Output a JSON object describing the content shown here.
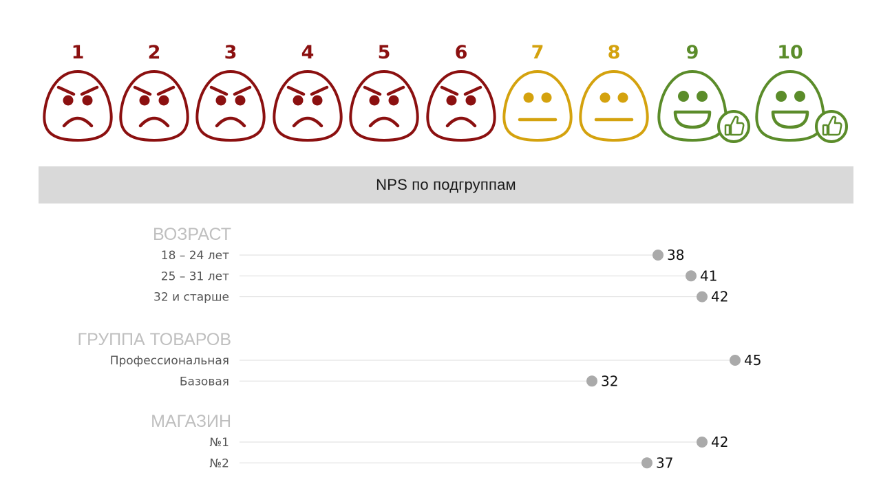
{
  "colors": {
    "detractor": "#8b1010",
    "passive": "#d4a20e",
    "promoter": "#5b8c2a",
    "header_bg": "#d9d9d9",
    "dot": "#aaaaaa",
    "line": "#dddddd",
    "group_text": "#bfbfbf"
  },
  "scale": [
    {
      "label": "1",
      "type": "detractor",
      "icon": "angry-face-icon"
    },
    {
      "label": "2",
      "type": "detractor",
      "icon": "angry-face-icon"
    },
    {
      "label": "3",
      "type": "detractor",
      "icon": "angry-face-icon"
    },
    {
      "label": "4",
      "type": "detractor",
      "icon": "angry-face-icon"
    },
    {
      "label": "5",
      "type": "detractor",
      "icon": "angry-face-icon"
    },
    {
      "label": "6",
      "type": "detractor",
      "icon": "angry-face-icon"
    },
    {
      "label": "7",
      "type": "passive",
      "icon": "neutral-face-icon"
    },
    {
      "label": "8",
      "type": "passive",
      "icon": "neutral-face-icon"
    },
    {
      "label": "9",
      "type": "promoter",
      "icon": "happy-face-thumbs-up-icon"
    },
    {
      "label": "10",
      "type": "promoter",
      "icon": "happy-face-thumbs-up-icon"
    }
  ],
  "header": {
    "title": "NPS по подгруппам"
  },
  "chart_data": {
    "type": "scatter",
    "xlim": [
      0,
      50
    ],
    "grid": false,
    "groups": [
      {
        "name": "ВОЗРАСТ",
        "rows": [
          {
            "label": "18 – 24 лет",
            "value": 38
          },
          {
            "label": "25 – 31 лет",
            "value": 41
          },
          {
            "label": "32 и старше",
            "value": 42
          }
        ]
      },
      {
        "name": "ГРУППА ТОВАРОВ",
        "rows": [
          {
            "label": "Профессиональная",
            "value": 45
          },
          {
            "label": "Базовая",
            "value": 32
          }
        ]
      },
      {
        "name": "МАГАЗИН",
        "rows": [
          {
            "label": "№1",
            "value": 42
          },
          {
            "label": "№2",
            "value": 37
          }
        ]
      }
    ]
  }
}
